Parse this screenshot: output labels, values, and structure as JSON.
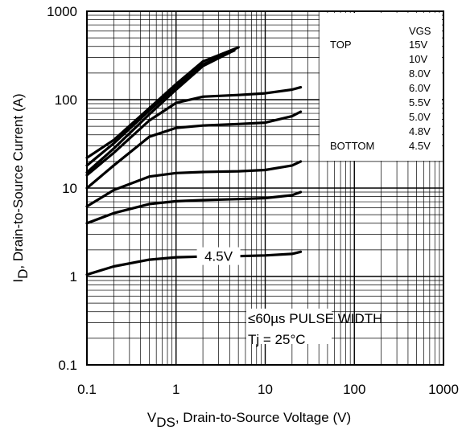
{
  "chart_data": {
    "type": "line",
    "xscale": "log",
    "yscale": "log",
    "xlim": [
      0.1,
      1000
    ],
    "ylim": [
      0.1,
      1000
    ],
    "grid": true,
    "xticks": [
      "0.1",
      "1",
      "10",
      "100",
      "1000"
    ],
    "yticks": [
      "0.1",
      "1",
      "10",
      "100",
      "1000"
    ],
    "xlabel_main": "V",
    "xlabel_sub": "DS",
    "xlabel_rest": ", Drain-to-Source Voltage (V)",
    "ylabel_main": "I",
    "ylabel_sub": "D",
    "ylabel_rest": ", Drain-to-Source Current (A)",
    "legend": {
      "header": "VGS",
      "top_label": "TOP",
      "bottom_label": "BOTTOM",
      "entries": [
        "15V",
        "10V",
        "8.0V",
        "6.0V",
        "5.5V",
        "5.0V",
        "4.8V",
        "4.5V"
      ],
      "placement": "top-right"
    },
    "annotations": {
      "curve_label": "4.5V",
      "pulse": "≤60µs PULSE WIDTH",
      "tj": "Tj = 25°C"
    },
    "series": [
      {
        "name": "15V",
        "x": [
          0.1,
          0.2,
          0.5,
          1,
          2,
          5
        ],
        "y": [
          22,
          35,
          80,
          150,
          270,
          390
        ]
      },
      {
        "name": "10V",
        "x": [
          0.1,
          0.2,
          0.5,
          1,
          2,
          4.5
        ],
        "y": [
          18,
          32,
          75,
          140,
          250,
          360
        ]
      },
      {
        "name": "8.0V",
        "x": [
          0.1,
          0.2,
          0.5,
          1,
          2,
          4
        ],
        "y": [
          15,
          28,
          68,
          130,
          240,
          340
        ]
      },
      {
        "name": "6.0V",
        "x": [
          0.1,
          0.2,
          0.5,
          1,
          2,
          5,
          10,
          20,
          25
        ],
        "y": [
          14,
          25,
          58,
          92,
          108,
          113,
          118,
          130,
          138
        ]
      },
      {
        "name": "5.5V",
        "x": [
          0.1,
          0.2,
          0.5,
          1,
          2,
          5,
          10,
          20,
          25
        ],
        "y": [
          10,
          18,
          38,
          48,
          51,
          53,
          55,
          65,
          73
        ]
      },
      {
        "name": "5.0V",
        "x": [
          0.1,
          0.2,
          0.5,
          1,
          2,
          5,
          10,
          20,
          25
        ],
        "y": [
          6.2,
          9.5,
          13.5,
          14.8,
          15.2,
          15.5,
          16,
          18,
          20
        ]
      },
      {
        "name": "4.8V",
        "x": [
          0.1,
          0.2,
          0.5,
          1,
          2,
          5,
          10,
          20,
          25
        ],
        "y": [
          4,
          5.2,
          6.6,
          7.1,
          7.3,
          7.5,
          7.7,
          8.3,
          9
        ]
      },
      {
        "name": "4.5V",
        "x": [
          0.1,
          0.2,
          0.5,
          1,
          2,
          5,
          10,
          20,
          25
        ],
        "y": [
          1.05,
          1.3,
          1.55,
          1.65,
          1.68,
          1.7,
          1.73,
          1.8,
          1.9
        ]
      }
    ]
  }
}
